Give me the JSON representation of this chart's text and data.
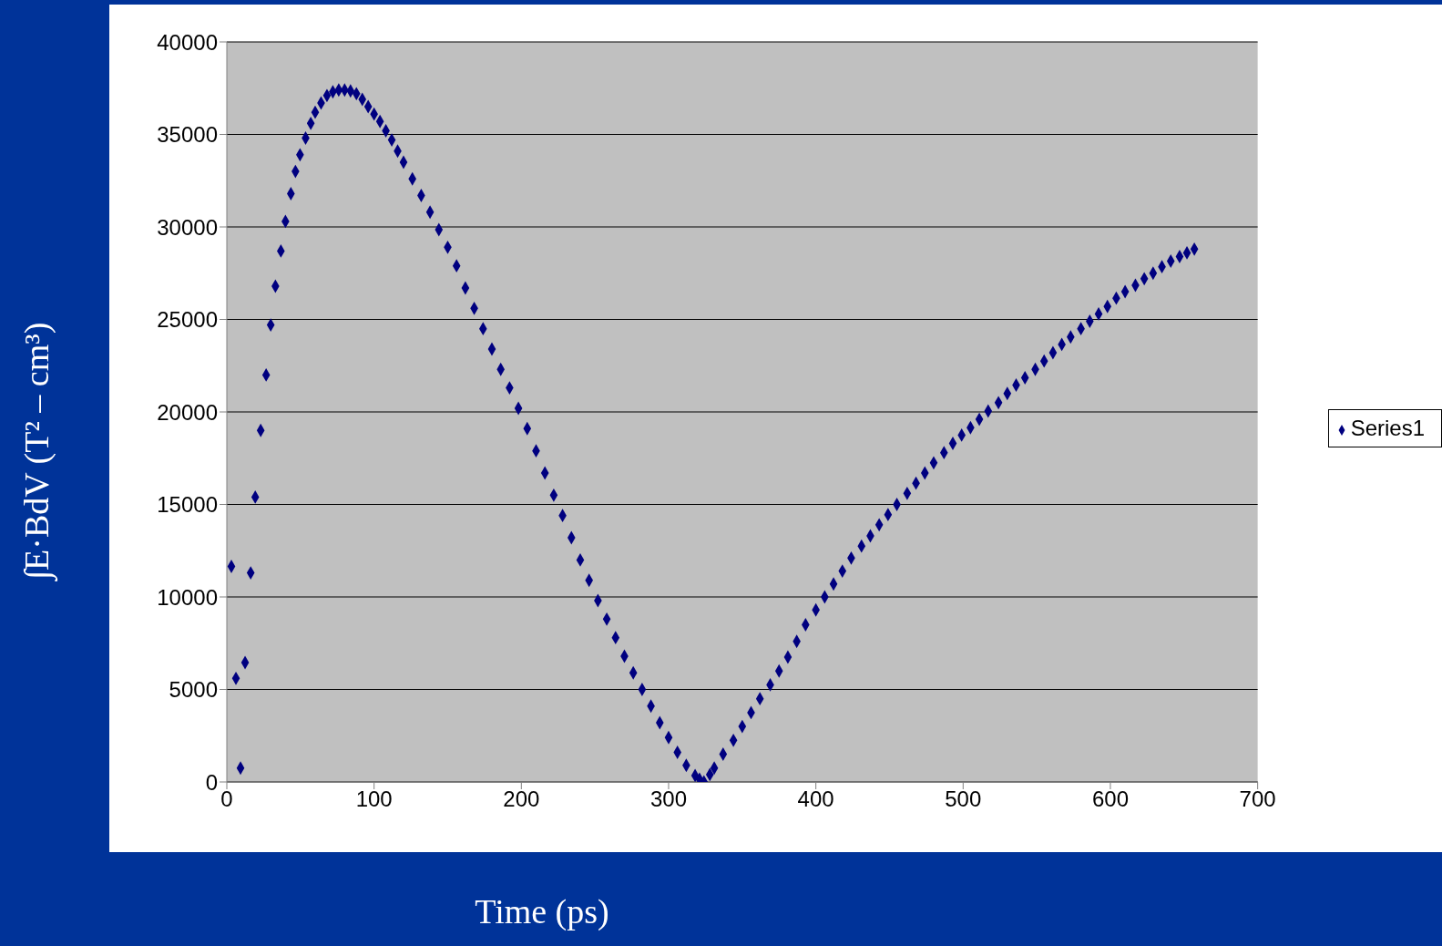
{
  "chart_data": {
    "type": "scatter",
    "xlabel": "Time (ps)",
    "ylabel": "∫E·BdV (T² – cm³)",
    "x": [
      3.1,
      6.2,
      9.3,
      12.4,
      16.2,
      19.3,
      23,
      26.7,
      29.8,
      33,
      36.7,
      39.8,
      43.5,
      46.6,
      49.7,
      53.5,
      57,
      60,
      64,
      68,
      72,
      76,
      80,
      84,
      88,
      92,
      96,
      100,
      104,
      108,
      112,
      116,
      120,
      126,
      132,
      138,
      144,
      150,
      156,
      162,
      168,
      174,
      180,
      186,
      192,
      198,
      204,
      210,
      216,
      222,
      228,
      234,
      240,
      246,
      252,
      258,
      264,
      270,
      276,
      282,
      288,
      294,
      300,
      306,
      312,
      318,
      321,
      324,
      328,
      331,
      337,
      344,
      350,
      356,
      362,
      369,
      375,
      381,
      387,
      393,
      400,
      406,
      412,
      418,
      424,
      431,
      437,
      443,
      449,
      455,
      462,
      468,
      474,
      480,
      487,
      493,
      499,
      505,
      511,
      517,
      524,
      530,
      536,
      542,
      549,
      555,
      561,
      567,
      573,
      580,
      586,
      592,
      598,
      604,
      610,
      617,
      623,
      629,
      635,
      641,
      647,
      652,
      657
    ],
    "series": [
      {
        "name": "Series1",
        "color": "#000080",
        "values": [
          11650,
          5600,
          750,
          6450,
          11300,
          15400,
          19000,
          22000,
          24700,
          26800,
          28700,
          30300,
          31800,
          33000,
          33900,
          34800,
          35600,
          36200,
          36700,
          37100,
          37300,
          37400,
          37400,
          37350,
          37200,
          36900,
          36500,
          36100,
          35700,
          35200,
          34700,
          34100,
          33500,
          32600,
          31700,
          30800,
          29850,
          28900,
          27900,
          26700,
          25600,
          24500,
          23400,
          22300,
          21300,
          20200,
          19100,
          17900,
          16700,
          15500,
          14400,
          13200,
          12000,
          10900,
          9800,
          8800,
          7800,
          6800,
          5900,
          5000,
          4100,
          3200,
          2400,
          1600,
          900,
          350,
          150,
          0,
          400,
          750,
          1500,
          2250,
          3000,
          3750,
          4500,
          5250,
          6000,
          6750,
          7600,
          8500,
          9300,
          10000,
          10700,
          11400,
          12100,
          12750,
          13300,
          13900,
          14450,
          15000,
          15600,
          16150,
          16700,
          17250,
          17800,
          18300,
          18750,
          19150,
          19600,
          20050,
          20500,
          21000,
          21450,
          21850,
          22300,
          22750,
          23200,
          23650,
          24050,
          24500,
          24900,
          25300,
          25700,
          26150,
          26500,
          26850,
          27200,
          27500,
          27850,
          28150,
          28400,
          28600,
          28800
        ]
      }
    ],
    "xlim": [
      0,
      700
    ],
    "xticks": [
      0,
      100,
      200,
      300,
      400,
      500,
      600,
      700
    ],
    "ylim": [
      0,
      40000
    ],
    "yticks": [
      0,
      5000,
      10000,
      15000,
      20000,
      25000,
      30000,
      35000,
      40000
    ],
    "grid": "y",
    "legend": "right",
    "marker": "diamond"
  }
}
